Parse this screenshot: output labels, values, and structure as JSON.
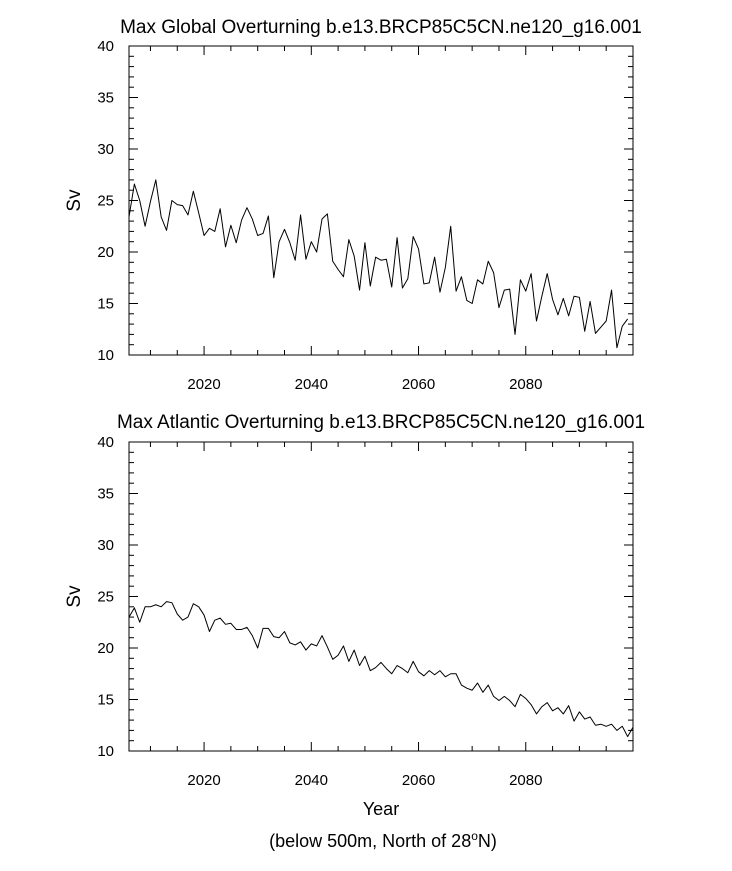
{
  "chart_data": [
    {
      "type": "line",
      "title": "Max Global Overturning b.e13.BRCP85C5CN.ne120_g16.001",
      "xlabel": "",
      "ylabel": "Sv",
      "xlim": [
        2006,
        2100
      ],
      "ylim": [
        10,
        40
      ],
      "x_ticks": [
        "2020",
        "2040",
        "2060",
        "2080"
      ],
      "x_tick_values": [
        2020,
        2040,
        2060,
        2080
      ],
      "y_ticks": [
        "10",
        "15",
        "20",
        "25",
        "30",
        "35",
        "40"
      ],
      "y_tick_values": [
        10,
        15,
        20,
        25,
        30,
        35,
        40
      ],
      "grid": false,
      "series": [
        {
          "name": "Max Global Overturning",
          "x_start": 2006,
          "x_step": 1,
          "values": [
            23.4,
            26.6,
            25.0,
            22.5,
            24.9,
            27.0,
            23.4,
            22.1,
            25.0,
            24.6,
            24.5,
            23.6,
            25.9,
            23.8,
            21.6,
            22.3,
            22.0,
            24.2,
            20.5,
            22.6,
            20.9,
            23.1,
            24.3,
            23.2,
            21.6,
            21.8,
            23.5,
            17.5,
            21.0,
            22.2,
            20.9,
            19.2,
            23.6,
            19.3,
            21.0,
            20.0,
            23.2,
            23.7,
            19.1,
            18.3,
            17.6,
            21.2,
            19.6,
            16.3,
            20.9,
            16.7,
            19.5,
            19.2,
            19.3,
            16.6,
            21.4,
            16.5,
            17.4,
            21.5,
            20.3,
            16.9,
            17.0,
            19.5,
            16.1,
            18.5,
            22.5,
            16.2,
            17.6,
            15.3,
            15.0,
            17.3,
            16.9,
            19.1,
            18.0,
            14.6,
            16.3,
            16.4,
            12.0,
            17.3,
            16.2,
            17.9,
            13.3,
            15.7,
            17.9,
            15.4,
            13.9,
            15.5,
            13.8,
            15.7,
            15.6,
            12.3,
            15.2,
            12.1,
            12.7,
            13.3,
            16.3,
            10.7,
            12.8,
            13.5
          ]
        }
      ]
    },
    {
      "type": "line",
      "title": "Max Atlantic Overturning b.e13.BRCP85C5CN.ne120_g16.001",
      "xlabel": "Year",
      "ylabel": "Sv",
      "xlim": [
        2006,
        2100
      ],
      "ylim": [
        10,
        40
      ],
      "x_ticks": [
        "2020",
        "2040",
        "2060",
        "2080"
      ],
      "x_tick_values": [
        2020,
        2040,
        2060,
        2080
      ],
      "y_ticks": [
        "10",
        "15",
        "20",
        "25",
        "30",
        "35",
        "40"
      ],
      "y_tick_values": [
        10,
        15,
        20,
        25,
        30,
        35,
        40
      ],
      "grid": false,
      "series": [
        {
          "name": "Max Atlantic Overturning",
          "x_start": 2006,
          "x_step": 1,
          "values": [
            23.0,
            23.9,
            22.5,
            24.0,
            24.0,
            24.2,
            24.0,
            24.5,
            24.4,
            23.3,
            22.7,
            23.0,
            24.3,
            24.0,
            23.2,
            21.6,
            22.7,
            22.9,
            22.3,
            22.4,
            21.8,
            21.8,
            22.0,
            21.2,
            20.0,
            21.9,
            21.9,
            21.1,
            21.0,
            21.6,
            20.5,
            20.3,
            20.6,
            19.8,
            20.4,
            20.2,
            21.2,
            20.1,
            18.9,
            19.3,
            20.2,
            18.7,
            19.8,
            18.3,
            19.2,
            17.8,
            18.1,
            18.6,
            18.0,
            17.5,
            18.3,
            18.0,
            17.6,
            18.7,
            17.7,
            17.3,
            17.8,
            17.4,
            17.8,
            17.2,
            17.5,
            17.5,
            16.4,
            16.1,
            15.9,
            16.6,
            15.7,
            16.4,
            15.3,
            14.9,
            15.3,
            14.9,
            14.3,
            15.5,
            15.1,
            14.5,
            13.6,
            14.3,
            14.7,
            13.9,
            14.2,
            13.6,
            14.4,
            12.9,
            13.8,
            13.1,
            13.3,
            12.5,
            12.6,
            12.4,
            12.6,
            12.0,
            12.4,
            11.4,
            12.3
          ]
        }
      ]
    }
  ],
  "footnote": {
    "prefix": "(below 500m, North of 28",
    "sup": "o",
    "suffix": "N)"
  }
}
